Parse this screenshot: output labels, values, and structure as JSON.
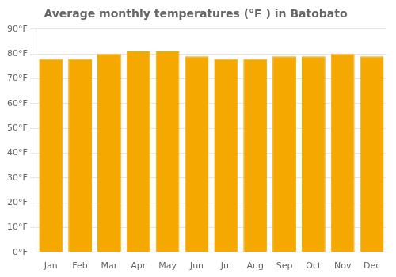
{
  "chart_data": {
    "type": "bar",
    "title": "Average monthly temperatures (°F ) in Batobato",
    "categories": [
      "Jan",
      "Feb",
      "Mar",
      "Apr",
      "May",
      "Jun",
      "Jul",
      "Aug",
      "Sep",
      "Oct",
      "Nov",
      "Dec"
    ],
    "values": [
      78,
      78,
      80,
      81,
      81,
      79,
      78,
      78,
      79,
      79,
      80,
      79
    ],
    "color": "#F5A800",
    "ylim": [
      0,
      90
    ],
    "yticks": [
      {
        "value": 0,
        "label": "0°F"
      },
      {
        "value": 10,
        "label": "10°F"
      },
      {
        "value": 20,
        "label": "20°F"
      },
      {
        "value": 30,
        "label": "30°F"
      },
      {
        "value": 40,
        "label": "40°F"
      },
      {
        "value": 50,
        "label": "50°F"
      },
      {
        "value": 60,
        "label": "60°F"
      },
      {
        "value": 70,
        "label": "70°F"
      },
      {
        "value": 80,
        "label": "80°F"
      },
      {
        "value": 90,
        "label": "90°F"
      }
    ],
    "grid": true
  }
}
